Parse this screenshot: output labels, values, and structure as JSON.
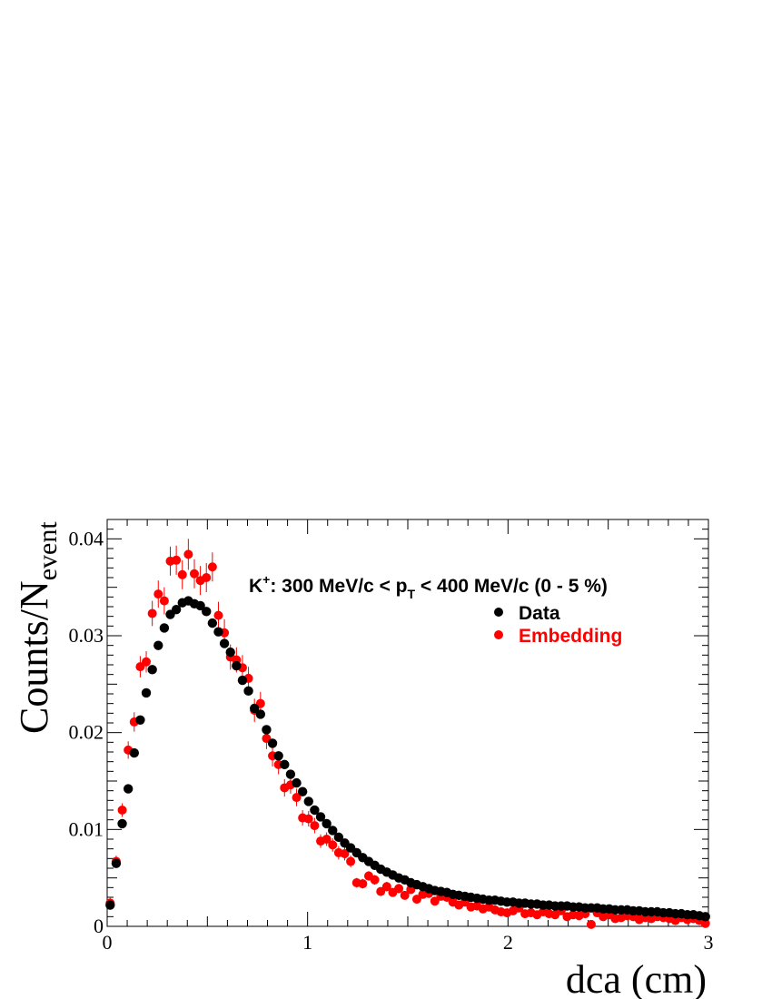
{
  "colors": {
    "data": "#000000",
    "embedding": "#ff0000",
    "frame": "#000000"
  },
  "chart_data": {
    "type": "scatter",
    "title": "",
    "xlabel": "dca (cm)",
    "ylabel_main": "Counts/N",
    "ylabel_sub": "event",
    "xlim": [
      0,
      3
    ],
    "ylim": [
      0,
      0.042
    ],
    "xticks": [
      0,
      1,
      2,
      3
    ],
    "xtick_labels": [
      "0",
      "1",
      "2",
      "3"
    ],
    "yticks": [
      0,
      0.01,
      0.02,
      0.03,
      0.04
    ],
    "ytick_labels": [
      "0",
      "0.01",
      "0.02",
      "0.03",
      "0.04"
    ],
    "annotation": {
      "particle": "K",
      "charge": "+",
      "pre": ": 300 MeV/c < p",
      "sub": "T",
      "post": " < 400 MeV/c (0 - 5 %)"
    },
    "legend": [
      {
        "name": "Data",
        "color": "#000000"
      },
      {
        "name": "Embedding",
        "color": "#ff0000"
      }
    ],
    "series": [
      {
        "name": "Data",
        "x": [
          0.015,
          0.045,
          0.075,
          0.105,
          0.135,
          0.165,
          0.195,
          0.225,
          0.255,
          0.285,
          0.315,
          0.345,
          0.375,
          0.405,
          0.435,
          0.465,
          0.495,
          0.525,
          0.555,
          0.585,
          0.615,
          0.645,
          0.675,
          0.705,
          0.735,
          0.765,
          0.795,
          0.825,
          0.855,
          0.885,
          0.915,
          0.945,
          0.975,
          1.005,
          1.035,
          1.065,
          1.095,
          1.125,
          1.155,
          1.185,
          1.215,
          1.245,
          1.275,
          1.305,
          1.335,
          1.365,
          1.395,
          1.425,
          1.455,
          1.485,
          1.515,
          1.545,
          1.575,
          1.605,
          1.635,
          1.665,
          1.695,
          1.725,
          1.755,
          1.785,
          1.815,
          1.845,
          1.875,
          1.905,
          1.935,
          1.965,
          1.995,
          2.025,
          2.055,
          2.085,
          2.115,
          2.145,
          2.175,
          2.205,
          2.235,
          2.265,
          2.295,
          2.325,
          2.355,
          2.385,
          2.415,
          2.445,
          2.475,
          2.505,
          2.535,
          2.565,
          2.595,
          2.625,
          2.655,
          2.685,
          2.715,
          2.745,
          2.775,
          2.805,
          2.835,
          2.865,
          2.895,
          2.925,
          2.955,
          2.985
        ],
        "y": [
          0.0022,
          0.0065,
          0.0106,
          0.0142,
          0.0179,
          0.0213,
          0.0241,
          0.0265,
          0.029,
          0.0308,
          0.0322,
          0.0327,
          0.0334,
          0.0336,
          0.0333,
          0.0331,
          0.0325,
          0.0313,
          0.0304,
          0.0292,
          0.0283,
          0.0269,
          0.0254,
          0.0243,
          0.0225,
          0.0219,
          0.0203,
          0.0189,
          0.0176,
          0.0167,
          0.0157,
          0.0148,
          0.0139,
          0.0129,
          0.012,
          0.0113,
          0.0106,
          0.0099,
          0.0092,
          0.0086,
          0.0081,
          0.0076,
          0.0071,
          0.0067,
          0.0063,
          0.0059,
          0.0056,
          0.0053,
          0.005,
          0.0048,
          0.0045,
          0.0043,
          0.0041,
          0.0039,
          0.0037,
          0.0036,
          0.0035,
          0.0033,
          0.0032,
          0.0031,
          0.003,
          0.0029,
          0.0028,
          0.0027,
          0.0027,
          0.0026,
          0.0025,
          0.0025,
          0.0024,
          0.0024,
          0.0023,
          0.0023,
          0.0022,
          0.0022,
          0.0021,
          0.0021,
          0.0021,
          0.002,
          0.002,
          0.0019,
          0.0019,
          0.0019,
          0.0018,
          0.0018,
          0.0017,
          0.0017,
          0.0017,
          0.0016,
          0.0016,
          0.0015,
          0.0015,
          0.0015,
          0.0014,
          0.0014,
          0.0013,
          0.0013,
          0.0012,
          0.0012,
          0.0011,
          0.001
        ]
      },
      {
        "name": "Embedding",
        "x": [
          0.015,
          0.045,
          0.075,
          0.105,
          0.135,
          0.165,
          0.195,
          0.225,
          0.255,
          0.285,
          0.315,
          0.345,
          0.375,
          0.405,
          0.435,
          0.465,
          0.495,
          0.525,
          0.555,
          0.585,
          0.615,
          0.645,
          0.675,
          0.705,
          0.735,
          0.765,
          0.795,
          0.825,
          0.855,
          0.885,
          0.915,
          0.945,
          0.975,
          1.005,
          1.035,
          1.065,
          1.095,
          1.125,
          1.155,
          1.185,
          1.215,
          1.245,
          1.275,
          1.305,
          1.335,
          1.365,
          1.395,
          1.425,
          1.455,
          1.485,
          1.515,
          1.545,
          1.575,
          1.605,
          1.635,
          1.665,
          1.695,
          1.725,
          1.755,
          1.785,
          1.815,
          1.845,
          1.875,
          1.905,
          1.935,
          1.965,
          1.995,
          2.025,
          2.055,
          2.085,
          2.115,
          2.145,
          2.175,
          2.205,
          2.235,
          2.265,
          2.295,
          2.325,
          2.355,
          2.385,
          2.415,
          2.445,
          2.475,
          2.505,
          2.535,
          2.565,
          2.595,
          2.625,
          2.655,
          2.685,
          2.715,
          2.745,
          2.775,
          2.805,
          2.835,
          2.865,
          2.895,
          2.925,
          2.955,
          2.985
        ],
        "y": [
          0.0024,
          0.0067,
          0.012,
          0.0182,
          0.0211,
          0.0268,
          0.0273,
          0.0323,
          0.0343,
          0.0336,
          0.0377,
          0.0378,
          0.0363,
          0.0384,
          0.0364,
          0.0357,
          0.036,
          0.0371,
          0.0321,
          0.0303,
          0.0278,
          0.0275,
          0.0267,
          0.0256,
          0.0223,
          0.023,
          0.0194,
          0.0176,
          0.0167,
          0.0143,
          0.0146,
          0.0133,
          0.0112,
          0.0111,
          0.0104,
          0.0088,
          0.009,
          0.0084,
          0.0076,
          0.0075,
          0.0067,
          0.0045,
          0.0044,
          0.0052,
          0.0048,
          0.0036,
          0.0041,
          0.0035,
          0.0039,
          0.0032,
          0.0038,
          0.0028,
          0.0033,
          0.0034,
          0.0026,
          0.0031,
          0.003,
          0.0025,
          0.0022,
          0.0025,
          0.002,
          0.0021,
          0.0018,
          0.002,
          0.0017,
          0.0015,
          0.0014,
          0.0016,
          0.0019,
          0.0013,
          0.0014,
          0.0012,
          0.0015,
          0.0013,
          0.0012,
          0.0016,
          0.001,
          0.0012,
          0.0011,
          0.0013,
          0.0002,
          0.0014,
          0.001,
          0.0012,
          0.0008,
          0.0009,
          0.0011,
          0.001,
          0.0007,
          0.0009,
          0.0008,
          0.001,
          0.0009,
          0.0008,
          0.0006,
          0.0009,
          0.0007,
          0.0008,
          0.0006,
          0.0003
        ],
        "yerr": [
          0.0006,
          0.0006,
          0.0007,
          0.0009,
          0.001,
          0.0011,
          0.0011,
          0.0013,
          0.0014,
          0.0014,
          0.0015,
          0.0015,
          0.0015,
          0.0016,
          0.0015,
          0.0015,
          0.0015,
          0.0015,
          0.0014,
          0.0014,
          0.0013,
          0.0013,
          0.0013,
          0.0012,
          0.0012,
          0.0012,
          0.0011,
          0.0011,
          0.001,
          0.0009,
          0.0009,
          0.0009,
          0.0008,
          0.0008,
          0.0008,
          0.0007,
          0.0007,
          0.0007,
          0.0007,
          0.0007,
          0.0006,
          0.0005,
          0.0005,
          0.0005,
          0.0005,
          0.0004,
          0.0005,
          0.0004,
          0.0005,
          0.0004,
          0.0004,
          0.0004,
          0.0004,
          0.0004,
          0.0004,
          0.0004,
          0.0004,
          0.0004,
          0.0003,
          0.0004,
          0.0003,
          0.0003,
          0.0003,
          0.0003,
          0.0003,
          0.0003,
          0.0003,
          0.0003,
          0.0003,
          0.0003,
          0.0003,
          0.0003,
          0.0003,
          0.0003,
          0.0003,
          0.0003,
          0.0003,
          0.0003,
          0.0003,
          0.0003,
          0.0002,
          0.0003,
          0.0003,
          0.0003,
          0.0002,
          0.0003,
          0.0003,
          0.0003,
          0.0002,
          0.0003,
          0.0002,
          0.0003,
          0.0003,
          0.0002,
          0.0002,
          0.0003,
          0.0002,
          0.0002,
          0.0002,
          0.0002
        ]
      }
    ]
  }
}
